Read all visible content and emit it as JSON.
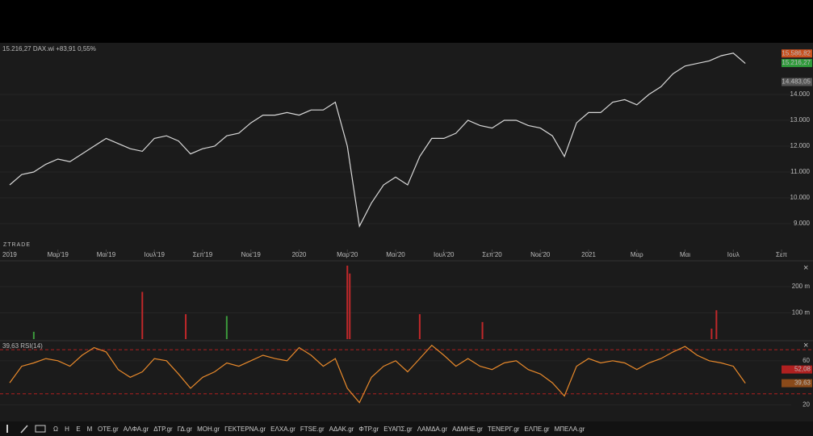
{
  "chart_data": [
    {
      "type": "line",
      "title": "15.216,27 DAX.wi +83,91 0,55%",
      "watermark": "ZTRADE",
      "color": "#d8d8d8",
      "x": [
        0,
        0.5,
        1,
        1.5,
        2,
        2.5,
        3,
        3.5,
        4,
        4.5,
        5,
        5.5,
        6,
        6.5,
        7,
        7.5,
        8,
        8.5,
        9,
        9.5,
        10,
        10.5,
        11,
        11.5,
        12,
        12.5,
        13,
        13.5,
        14,
        14.5,
        15,
        15.5,
        16,
        16.5,
        17,
        17.5,
        18,
        18.5,
        19,
        19.5,
        20,
        20.5,
        21,
        21.5,
        22,
        22.5,
        23,
        23.5,
        24,
        24.5,
        25,
        25.5,
        26,
        26.5,
        27,
        27.5,
        28,
        28.5,
        29,
        29.5,
        30,
        30.5
      ],
      "values": [
        10500,
        10900,
        11000,
        11300,
        11500,
        11400,
        11700,
        12000,
        12300,
        12100,
        11900,
        11800,
        12300,
        12400,
        12200,
        11700,
        11900,
        12000,
        12400,
        12500,
        12900,
        13200,
        13200,
        13300,
        13200,
        13400,
        13400,
        13700,
        12000,
        8900,
        9800,
        10500,
        10800,
        10500,
        11600,
        12300,
        12300,
        12500,
        13000,
        12800,
        12700,
        13000,
        13000,
        12800,
        12700,
        12400,
        11600,
        12900,
        13300,
        13300,
        13700,
        13800,
        13600,
        14000,
        14300,
        14800,
        15100,
        15200,
        15300,
        15500,
        15600,
        15200
      ],
      "xlim": [
        -0.4,
        32.4
      ],
      "xticks": [
        {
          "value": 0,
          "label": "2019"
        },
        {
          "value": 2,
          "label": "Μαρ'19"
        },
        {
          "value": 4,
          "label": "Μαι'19"
        },
        {
          "value": 6,
          "label": "Ιουλ'19"
        },
        {
          "value": 8,
          "label": "Σεπ'19"
        },
        {
          "value": 10,
          "label": "Νοε'19"
        },
        {
          "value": 12,
          "label": "2020"
        },
        {
          "value": 14,
          "label": "Μαρ'20"
        },
        {
          "value": 16,
          "label": "Μαι'20"
        },
        {
          "value": 18,
          "label": "Ιουλ'20"
        },
        {
          "value": 20,
          "label": "Σεπ'20"
        },
        {
          "value": 22,
          "label": "Νοε'20"
        },
        {
          "value": 24,
          "label": "2021"
        },
        {
          "value": 26,
          "label": "Μαρ"
        },
        {
          "value": 28,
          "label": "Μαι"
        },
        {
          "value": 30,
          "label": "Ιουλ"
        },
        {
          "value": 32,
          "label": "Σεπ"
        }
      ],
      "ylim": [
        8000,
        16000
      ],
      "yticks": [
        {
          "value": 9000,
          "label": "9.000"
        },
        {
          "value": 10000,
          "label": "10.000"
        },
        {
          "value": 11000,
          "label": "11.000"
        },
        {
          "value": 12000,
          "label": "12.000"
        },
        {
          "value": 13000,
          "label": "13.000"
        },
        {
          "value": 14000,
          "label": "14.000"
        }
      ],
      "annotations": [
        {
          "value": 15586.82,
          "label": "15.586,82",
          "color": "#c8501e"
        },
        {
          "value": 15216.27,
          "label": "15.216,27",
          "color": "#2e9a3a"
        },
        {
          "value": 14483.05,
          "label": "14.483,05",
          "color": "#555555"
        }
      ]
    },
    {
      "type": "bar",
      "x": [
        1,
        5.5,
        7.3,
        9,
        14,
        14.1,
        17,
        19.6,
        29.1,
        29.3
      ],
      "values": [
        28,
        180,
        95,
        88,
        280,
        250,
        95,
        65,
        40,
        110
      ],
      "colors": [
        "#3c9a3c",
        "#c0282a",
        "#c0282a",
        "#3c9a3c",
        "#c0282a",
        "#c0282a",
        "#c0282a",
        "#c0282a",
        "#c0282a",
        "#c0282a"
      ],
      "xlim": [
        -0.4,
        32.4
      ],
      "ylim": [
        0,
        280
      ],
      "yticks": [
        {
          "value": 100,
          "label": "100 m"
        },
        {
          "value": 200,
          "label": "200 m"
        }
      ]
    },
    {
      "type": "line",
      "title": "39,63 RSI(14)",
      "color": "#e8892b",
      "x": [
        0,
        0.5,
        1,
        1.5,
        2,
        2.5,
        3,
        3.5,
        4,
        4.5,
        5,
        5.5,
        6,
        6.5,
        7,
        7.5,
        8,
        8.5,
        9,
        9.5,
        10,
        10.5,
        11,
        11.5,
        12,
        12.5,
        13,
        13.5,
        14,
        14.5,
        15,
        15.5,
        16,
        16.5,
        17,
        17.5,
        18,
        18.5,
        19,
        19.5,
        20,
        20.5,
        21,
        21.5,
        22,
        22.5,
        23,
        23.5,
        24,
        24.5,
        25,
        25.5,
        26,
        26.5,
        27,
        27.5,
        28,
        28.5,
        29,
        29.5,
        30,
        30.5
      ],
      "values": [
        40,
        55,
        58,
        62,
        60,
        55,
        65,
        72,
        68,
        52,
        45,
        50,
        62,
        60,
        48,
        35,
        45,
        50,
        58,
        55,
        60,
        65,
        62,
        60,
        72,
        65,
        55,
        62,
        35,
        22,
        45,
        55,
        60,
        50,
        62,
        74,
        65,
        55,
        62,
        55,
        52,
        58,
        60,
        52,
        48,
        40,
        28,
        55,
        62,
        58,
        60,
        58,
        52,
        58,
        62,
        68,
        73,
        65,
        60,
        58,
        55,
        39.63
      ],
      "xlim": [
        -0.4,
        32.4
      ],
      "ylim": [
        10,
        76
      ],
      "yticks": [
        20,
        60
      ],
      "levels": [
        30,
        70
      ],
      "annotations": [
        {
          "value": 52.08,
          "label": "52,08",
          "color": "#b02020"
        },
        {
          "value": 39.63,
          "label": "39,63",
          "color": "#8a4a1a"
        }
      ]
    }
  ],
  "toolbar": {
    "periods": [
      "Ω",
      "Η",
      "Ε",
      "Μ"
    ],
    "symbols": [
      "ΟΤΕ.gr",
      "ΑΛΦΑ.gr",
      "ΔΤΡ.gr",
      "ΓΔ.gr",
      "ΜΟΗ.gr",
      "ΓΕΚΤΕΡΝΑ.gr",
      "ΕΛΧΑ.gr",
      "FTSE.gr",
      "ΑΔΑΚ.gr",
      "ΦΤΡ.gr",
      "ΕΥΑΠΣ.gr",
      "ΛΑΜΔΑ.gr",
      "ΑΔΜΗΕ.gr",
      "ΤΕΝΕΡΓ.gr",
      "ΕΛΠΕ.gr",
      "ΜΠΕΛΑ.gr"
    ]
  }
}
